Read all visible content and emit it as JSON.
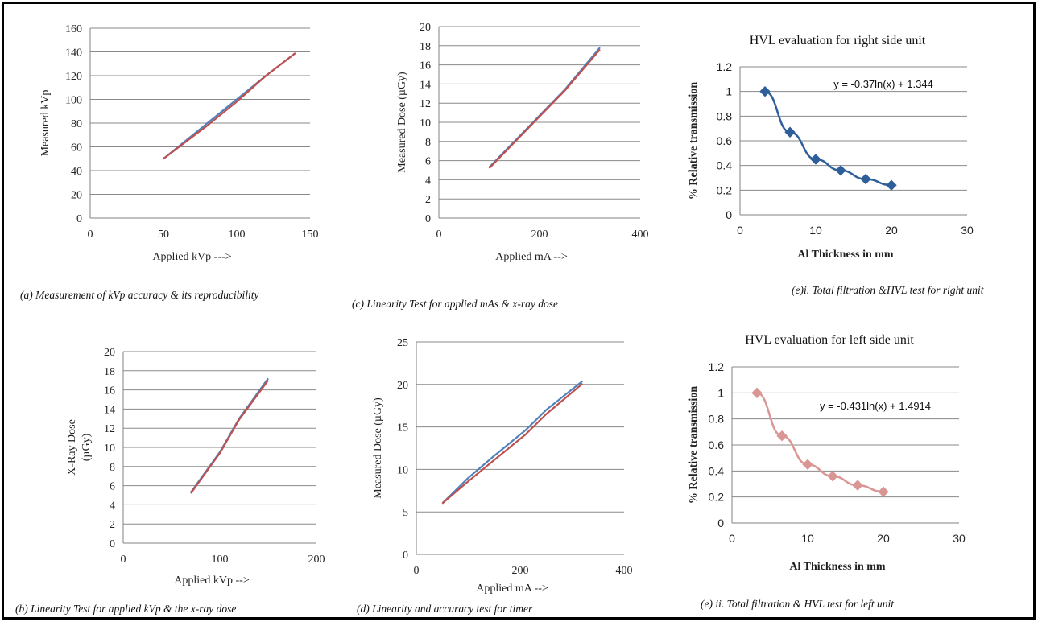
{
  "chart_data": [
    {
      "id": "a",
      "type": "line",
      "title": "",
      "xlabel": "Applied kVp --->",
      "ylabel": "Measured kVp",
      "xlim": [
        0,
        150
      ],
      "ylim": [
        0,
        160
      ],
      "xticks": [
        0,
        50,
        100,
        150
      ],
      "yticks": [
        0,
        20,
        40,
        60,
        80,
        100,
        120,
        140,
        160
      ],
      "grid": "horizontal",
      "series": [
        {
          "color": "#4F81BD",
          "x": [
            50,
            80,
            100,
            120,
            140
          ],
          "y": [
            50,
            80,
            100,
            120,
            139
          ]
        },
        {
          "color": "#C0504D",
          "x": [
            50,
            80,
            100,
            120,
            140
          ],
          "y": [
            50,
            78,
            98,
            120,
            139
          ]
        }
      ],
      "caption": "(a) Measurement of kVp accuracy & its reproducibility"
    },
    {
      "id": "b",
      "type": "line",
      "title": "",
      "xlabel": "Applied kVp -->",
      "ylabel": "X-Ray Dose (µGy)",
      "xlim": [
        0,
        200
      ],
      "ylim": [
        0,
        20
      ],
      "xticks": [
        0,
        100,
        200
      ],
      "yticks": [
        0,
        2,
        4,
        6,
        8,
        10,
        12,
        14,
        16,
        18,
        20
      ],
      "grid": "horizontal",
      "series": [
        {
          "color": "#4F81BD",
          "x": [
            70,
            100,
            120,
            150
          ],
          "y": [
            5.3,
            9.5,
            13,
            17.2
          ]
        },
        {
          "color": "#C0504D",
          "x": [
            70,
            100,
            120,
            150
          ],
          "y": [
            5.2,
            9.4,
            12.9,
            17.0
          ]
        }
      ],
      "caption": "(b) Linearity Test for applied kVp & the x-ray dose"
    },
    {
      "id": "c",
      "type": "line",
      "title": "",
      "xlabel": "Applied mA -->",
      "ylabel": "Measured Dose (µGy)",
      "xlim": [
        0,
        400
      ],
      "ylim": [
        0,
        20
      ],
      "xticks": [
        0,
        200,
        400
      ],
      "yticks": [
        0,
        2,
        4,
        6,
        8,
        10,
        12,
        14,
        16,
        18,
        20
      ],
      "grid": "horizontal",
      "series": [
        {
          "color": "#4F81BD",
          "x": [
            100,
            200,
            250,
            320
          ],
          "y": [
            5.3,
            10.7,
            13.4,
            17.8
          ]
        },
        {
          "color": "#C0504D",
          "x": [
            100,
            200,
            250,
            320
          ],
          "y": [
            5.2,
            10.6,
            13.3,
            17.6
          ]
        }
      ],
      "caption": "(c) Linearity Test for applied mAs & x-ray dose"
    },
    {
      "id": "d",
      "type": "line",
      "title": "",
      "xlabel": "Applied mA -->",
      "ylabel": "Measured Dose (µGy)",
      "xlim": [
        0,
        400
      ],
      "ylim": [
        0,
        25
      ],
      "xticks": [
        0,
        200,
        400
      ],
      "yticks": [
        0,
        5,
        10,
        15,
        20,
        25
      ],
      "grid": "horizontal",
      "series": [
        {
          "color": "#4F81BD",
          "x": [
            50,
            100,
            150,
            210,
            250,
            320
          ],
          "y": [
            6,
            9,
            11.6,
            14.6,
            17,
            20.4
          ]
        },
        {
          "color": "#C0504D",
          "x": [
            50,
            100,
            150,
            210,
            250,
            320
          ],
          "y": [
            6,
            8.6,
            11.1,
            14.1,
            16.5,
            20.1
          ]
        }
      ],
      "caption": "(d) Linearity and accuracy test for timer"
    },
    {
      "id": "ei",
      "type": "scatter",
      "title": "HVL  evaluation for right side unit",
      "xlabel": "Al Thickness  in mm",
      "ylabel": "% Relative transmission",
      "xlim": [
        0,
        30
      ],
      "ylim": [
        0,
        1.2
      ],
      "xticks": [
        0,
        10,
        20,
        30
      ],
      "yticks": [
        0,
        0.2,
        0.4,
        0.6,
        0.8,
        1,
        1.2
      ],
      "grid": "horizontal",
      "equation": "y = -0.37ln(x) + 1.344",
      "series": [
        {
          "color": "#2E5F9A",
          "marker": "diamond",
          "x": [
            3.3,
            6.6,
            10,
            13.3,
            16.6,
            20
          ],
          "y": [
            1.0,
            0.67,
            0.45,
            0.36,
            0.29,
            0.24
          ]
        }
      ],
      "caption": "(e)i. Total filtration &HVL test for right unit"
    },
    {
      "id": "eii",
      "type": "scatter",
      "title": "HVL  evaluation for left side unit",
      "xlabel": "Al Thickness  in mm",
      "ylabel": "% Relative transmission",
      "xlim": [
        0,
        30
      ],
      "ylim": [
        0,
        1.2
      ],
      "xticks": [
        0,
        10,
        20,
        30
      ],
      "yticks": [
        0,
        0.2,
        0.4,
        0.6,
        0.8,
        1,
        1.2
      ],
      "grid": "horizontal",
      "equation": "y = -0.431ln(x) + 1.4914",
      "series": [
        {
          "color": "#D99694",
          "marker": "diamond",
          "x": [
            3.3,
            6.6,
            10,
            13.3,
            16.6,
            20
          ],
          "y": [
            1.0,
            0.67,
            0.45,
            0.36,
            0.29,
            0.24
          ]
        }
      ],
      "caption": "(e) ii. Total filtration & HVL test for left unit"
    }
  ]
}
